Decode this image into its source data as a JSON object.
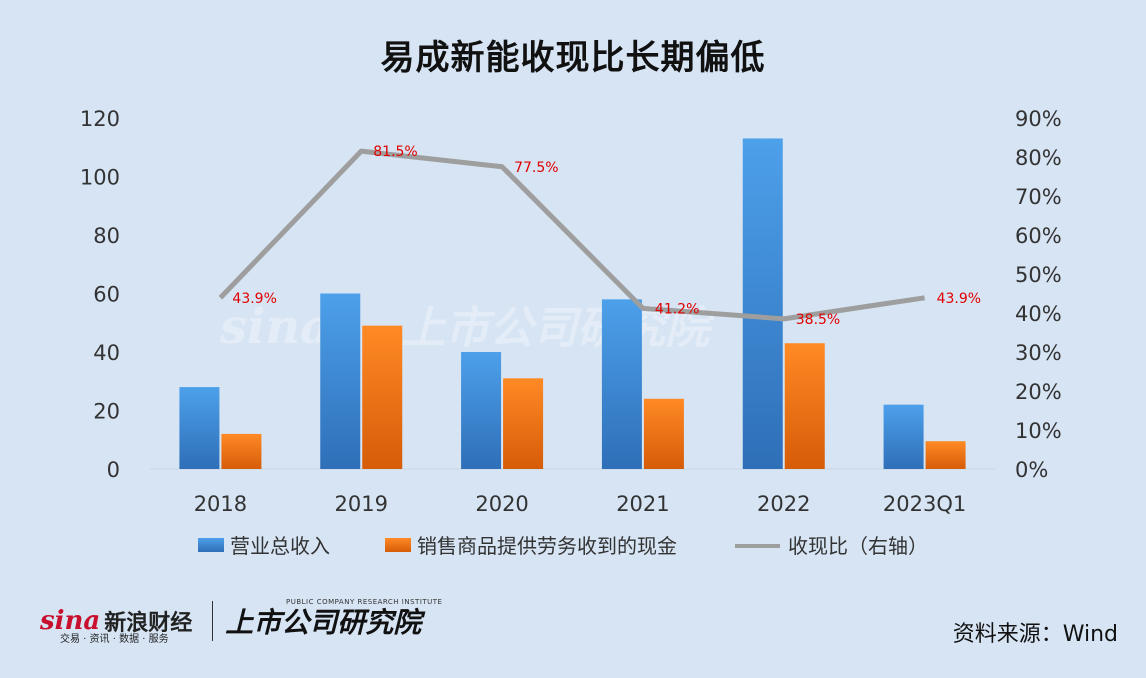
{
  "title": "易成新能收现比长期偏低",
  "source": "资料来源：Wind",
  "logos": {
    "sina_word": "sina",
    "sina_cn": "新浪财经",
    "sina_sub": "交易 · 资讯 · 数据 · 服务",
    "institute_cn": "上市公司研究院",
    "institute_en": "PUBLIC COMPANY RESEARCH INSTITUTE"
  },
  "colors": {
    "bar_revenue": "#3d85d8",
    "bar_cash": "#f07a1a",
    "line": "#9e9e9e",
    "line_label": "#e00000",
    "axis_text": "#333333"
  },
  "chart_data": {
    "type": "bar",
    "categories": [
      "2018",
      "2019",
      "2020",
      "2021",
      "2022",
      "2023Q1"
    ],
    "series": [
      {
        "name": "营业总收入",
        "type": "bar",
        "axis": "left",
        "values": [
          28,
          60,
          40,
          58,
          113,
          22
        ]
      },
      {
        "name": "销售商品提供劳务收到的现金",
        "type": "bar",
        "axis": "left",
        "values": [
          12,
          49,
          31,
          24,
          43,
          9.5
        ]
      },
      {
        "name": "收现比（右轴）",
        "type": "line",
        "axis": "right",
        "values": [
          43.9,
          81.5,
          77.5,
          41.2,
          38.5,
          43.9
        ],
        "labels": [
          "43.9%",
          "81.5%",
          "77.5%",
          "41.2%",
          "38.5%",
          "43.9%"
        ]
      }
    ],
    "ylim_left": [
      0,
      120
    ],
    "yticks_left": [
      "0",
      "20",
      "40",
      "60",
      "80",
      "100",
      "120"
    ],
    "ylim_right": [
      0,
      90
    ],
    "yticks_right": [
      "0%",
      "10%",
      "20%",
      "30%",
      "40%",
      "50%",
      "60%",
      "70%",
      "80%",
      "90%"
    ],
    "grid": false,
    "legend": "bottom"
  }
}
